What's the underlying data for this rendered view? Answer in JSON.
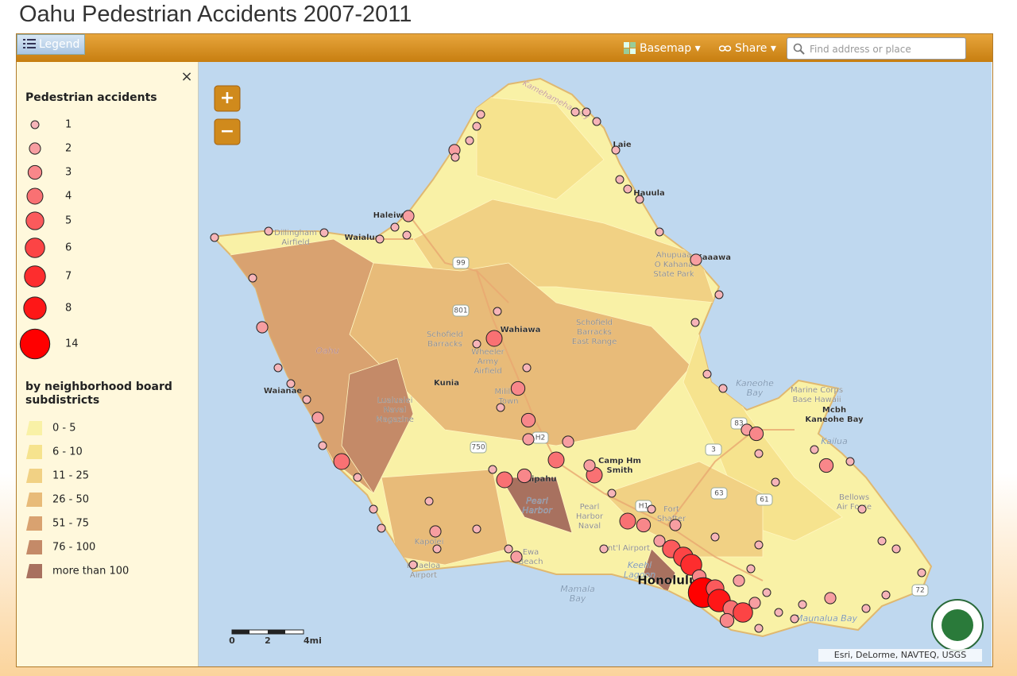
{
  "header": {
    "title": "Oahu Pedestrian Accidents 2007-2011"
  },
  "toolbar": {
    "legend": "Legend",
    "basemap": "Basemap",
    "share": "Share",
    "search_placeholder": "Find address or place"
  },
  "legend": {
    "close": "×",
    "accidents_title": "Pedestrian accidents",
    "accident_sizes": [
      1,
      2,
      3,
      4,
      5,
      6,
      7,
      8,
      14
    ],
    "subdistricts_title": "by neighborhood board subdistricts",
    "classes": [
      {
        "label": "0 - 5",
        "color": "#f9f1a6"
      },
      {
        "label": "6 - 10",
        "color": "#f6e38e"
      },
      {
        "label": "11 - 25",
        "color": "#f1d184"
      },
      {
        "label": "26 - 50",
        "color": "#e8bb79"
      },
      {
        "label": "51 - 75",
        "color": "#d9a270"
      },
      {
        "label": "76 - 100",
        "color": "#c48a68"
      },
      {
        "label": "more than 100",
        "color": "#a8715f"
      }
    ]
  },
  "map": {
    "zoom_in": "+",
    "zoom_out": "−",
    "labels": [
      {
        "lines": [
          "Kamehameha Hwy"
        ]
      },
      {
        "lines": [
          "Laie"
        ]
      },
      {
        "lines": [
          "Hauula"
        ]
      },
      {
        "lines": [
          "Kaaawa"
        ]
      },
      {
        "lines": [
          "Haleiwa"
        ]
      },
      {
        "lines": [
          "Waialua"
        ]
      },
      {
        "lines": [
          "Dillingham",
          "Airfield"
        ]
      },
      {
        "lines": [
          "Ahupuaa",
          "O Kahana",
          "State Park"
        ]
      },
      {
        "lines": [
          "Schofield",
          "Barracks",
          "East Range"
        ]
      },
      {
        "lines": [
          "Schofield",
          "Barracks"
        ]
      },
      {
        "lines": [
          "Wahiawa"
        ]
      },
      {
        "lines": [
          "Wheeler",
          "Army",
          "Airfield"
        ]
      },
      {
        "lines": [
          "Oahu"
        ]
      },
      {
        "lines": [
          "Waianae"
        ]
      },
      {
        "lines": [
          "Lualualei",
          "Naval",
          "Magazine"
        ]
      },
      {
        "lines": [
          "Kunia"
        ]
      },
      {
        "lines": [
          "Mililani",
          "Town"
        ]
      },
      {
        "lines": [
          "Kaneohe",
          "Bay"
        ]
      },
      {
        "lines": [
          "Marine Corps",
          "Base Hawaii"
        ]
      },
      {
        "lines": [
          "Mcbh",
          "Kaneohe Bay"
        ]
      },
      {
        "lines": [
          "Kailua"
        ]
      },
      {
        "lines": [
          "Camp Hm",
          "Smith"
        ]
      },
      {
        "lines": [
          "Pearl",
          "Harbor"
        ]
      },
      {
        "lines": [
          "Pearl",
          "Harbor",
          "Naval"
        ]
      },
      {
        "lines": [
          "Fort",
          "Shafter"
        ]
      },
      {
        "lines": [
          "Int'l Airport"
        ]
      },
      {
        "lines": [
          "Keehi",
          "Lagoon"
        ]
      },
      {
        "lines": [
          "Kapolei"
        ]
      },
      {
        "lines": [
          "Kalaeloa",
          "Airport"
        ]
      },
      {
        "lines": [
          "Ewa",
          "Beach"
        ]
      },
      {
        "lines": [
          "Mamala",
          "Bay"
        ]
      },
      {
        "lines": [
          "Honolulu"
        ]
      },
      {
        "lines": [
          "Maunalua Bay"
        ]
      },
      {
        "lines": [
          "Waipahu"
        ]
      },
      {
        "lines": [
          "Bellows",
          "Air Force"
        ]
      }
    ],
    "shields": [
      "99",
      "801",
      "750",
      "H2",
      "H1",
      "83",
      "63",
      "61",
      "3",
      "72"
    ],
    "scale": [
      "0",
      "2",
      "4mi"
    ],
    "attribution": "Esri, DeLorme, NAVTEQ, USGS",
    "accidents": [
      1,
      1,
      1,
      2,
      1,
      1,
      1,
      1,
      1,
      1,
      1,
      1,
      1,
      2,
      1,
      1,
      1,
      1,
      2,
      3,
      1,
      1,
      1,
      3,
      1,
      1,
      1,
      1,
      1,
      1,
      1,
      2,
      1,
      2,
      1,
      1,
      1,
      1,
      1,
      1,
      1,
      2,
      1,
      4,
      1,
      1,
      3,
      1,
      3,
      2,
      2,
      4,
      4,
      2,
      3,
      4,
      1,
      1,
      1,
      1,
      2,
      1,
      4,
      1,
      1,
      1,
      1,
      2,
      1,
      1,
      1,
      1,
      2,
      1,
      4,
      3,
      2,
      5,
      6,
      7,
      3,
      14,
      5,
      8,
      4,
      6,
      2,
      1,
      1,
      1,
      2,
      1,
      1,
      1,
      1,
      3,
      2,
      1,
      1
    ]
  }
}
